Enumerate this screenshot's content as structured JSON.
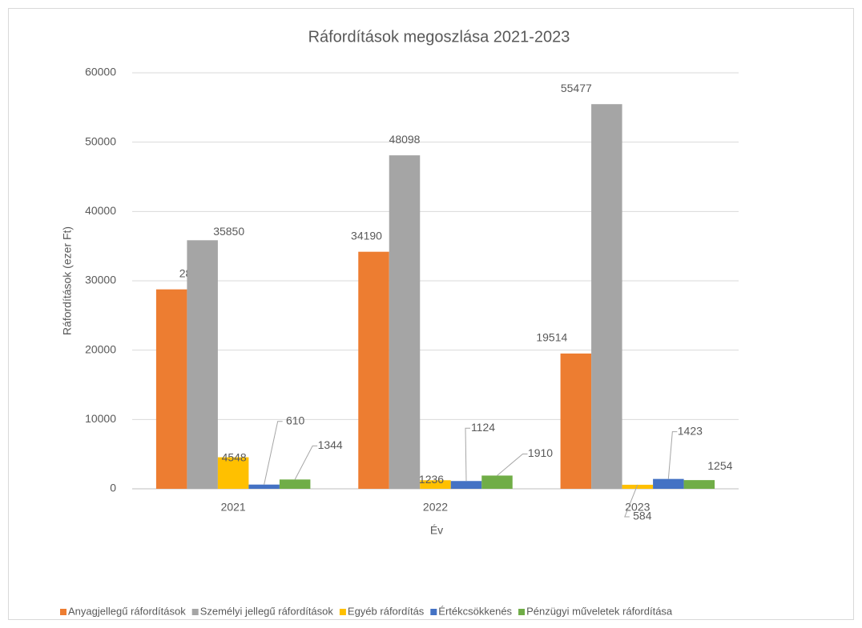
{
  "chart_data": {
    "type": "bar",
    "title": "Ráfordítások megoszlása 2021-2023",
    "x_label": "Év",
    "y_label": "Ráfordítások (ezer Ft)",
    "categories": [
      "2021",
      "2022",
      "2023"
    ],
    "series": [
      {
        "name": "Anyagjellegű ráfordítások",
        "color": "#ED7D31",
        "values": [
          28765,
          34190,
          19514
        ]
      },
      {
        "name": "Személyi jellegű ráfordítások",
        "color": "#A5A5A5",
        "values": [
          35850,
          48098,
          55477
        ]
      },
      {
        "name": "Egyéb ráfordítás",
        "color": "#FFC000",
        "values": [
          4548,
          1236,
          584
        ]
      },
      {
        "name": "Értékcsökkenés",
        "color": "#4472C4",
        "values": [
          610,
          1124,
          1423
        ]
      },
      {
        "name": "Pénzügyi műveletek ráfordítása",
        "color": "#70AD47",
        "values": [
          1344,
          1910,
          1254
        ]
      }
    ],
    "ylim": [
      0,
      60000
    ],
    "yticks": [
      0,
      10000,
      20000,
      30000,
      40000,
      50000,
      60000
    ],
    "grid": true,
    "legend": "bottom"
  }
}
